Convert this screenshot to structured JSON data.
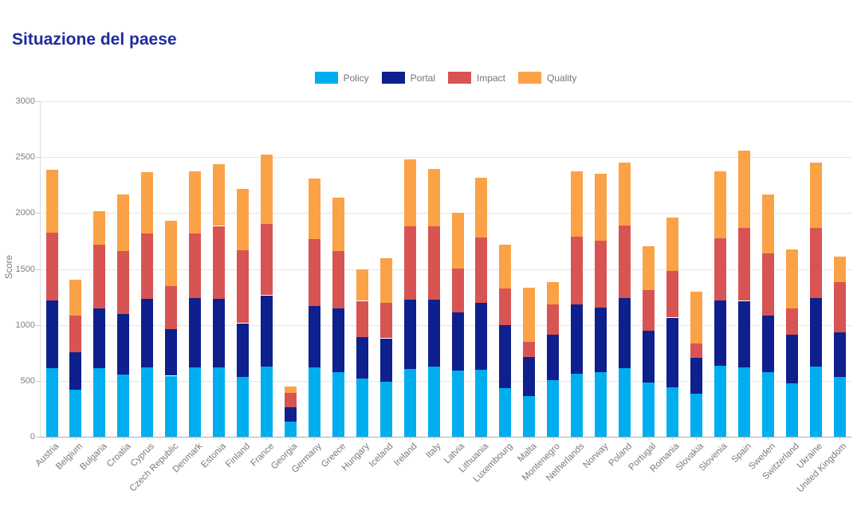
{
  "page": {
    "title": "Situazione del paese"
  },
  "chart_data": {
    "type": "bar",
    "stacked": true,
    "title": "Situazione del paese",
    "xlabel": "",
    "ylabel": "Score",
    "ylim": [
      0,
      3000
    ],
    "yticks": [
      0,
      500,
      1000,
      1500,
      2000,
      2500,
      3000
    ],
    "grid": true,
    "legend_position": "top",
    "categories": [
      "Austria",
      "Belgium",
      "Bulgaria",
      "Croatia",
      "Cyprus",
      "Czech Republic",
      "Denmark",
      "Estonia",
      "Finland",
      "France",
      "Georgia",
      "Germany",
      "Greece",
      "Hungary",
      "Iceland",
      "Ireland",
      "Italy",
      "Latvia",
      "Lithuania",
      "Luxembourg",
      "Malta",
      "Montenegro",
      "Netherlands",
      "Norway",
      "Poland",
      "Portugal",
      "Romania",
      "Slovakia",
      "Slovenia",
      "Spain",
      "Sweden",
      "Switzerland",
      "Ukraine",
      "United Kingdom"
    ],
    "series": [
      {
        "name": "Policy",
        "color": "#00AEEF",
        "values": [
          615,
          420,
          615,
          555,
          620,
          545,
          620,
          620,
          535,
          625,
          135,
          620,
          575,
          520,
          490,
          605,
          630,
          590,
          600,
          435,
          365,
          505,
          560,
          580,
          615,
          485,
          440,
          385,
          635,
          620,
          575,
          475,
          630,
          535
        ]
      },
      {
        "name": "Portal",
        "color": "#0D208D",
        "values": [
          605,
          335,
          530,
          545,
          615,
          415,
          620,
          615,
          480,
          640,
          130,
          550,
          570,
          370,
          390,
          620,
          595,
          520,
          600,
          560,
          345,
          410,
          625,
          575,
          625,
          460,
          625,
          320,
          585,
          595,
          505,
          435,
          610,
          400
        ]
      },
      {
        "name": "Impact",
        "color": "#D75452",
        "values": [
          605,
          330,
          570,
          560,
          585,
          385,
          575,
          650,
          650,
          640,
          130,
          595,
          515,
          325,
          315,
          655,
          655,
          395,
          580,
          330,
          140,
          270,
          605,
          595,
          650,
          365,
          420,
          130,
          555,
          650,
          560,
          235,
          625,
          450
        ]
      },
      {
        "name": "Quality",
        "color": "#FBA247",
        "values": [
          560,
          320,
          300,
          505,
          545,
          585,
          555,
          550,
          555,
          615,
          55,
          545,
          475,
          280,
          400,
          600,
          515,
          495,
          535,
          395,
          485,
          195,
          585,
          605,
          565,
          395,
          475,
          460,
          600,
          695,
          530,
          530,
          590,
          225
        ]
      }
    ]
  },
  "colors": {
    "title": "#1E2C9E",
    "axis_text": "#7A7A7A",
    "gridline": "#E6E6E6",
    "axis_line": "#ADADAD",
    "background": "#FFFFFF"
  }
}
